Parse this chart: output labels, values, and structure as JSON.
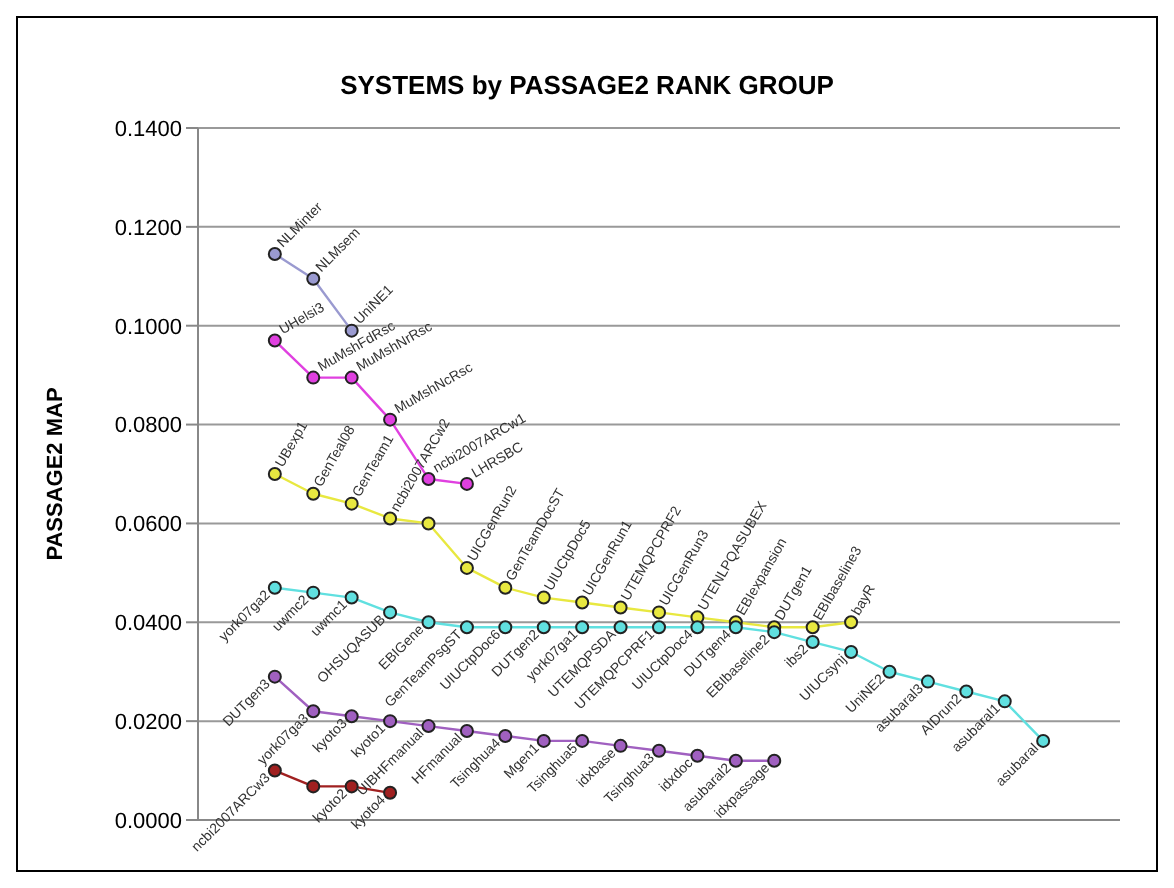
{
  "chart_data": {
    "type": "line",
    "title": "SYSTEMS by PASSAGE2 RANK GROUP",
    "ylabel": "PASSAGE2 MAP",
    "categories": [
      null,
      null,
      null,
      null,
      null,
      null,
      null,
      null,
      null,
      null,
      null,
      null,
      null,
      null,
      null,
      null,
      null,
      null,
      null,
      null,
      null
    ],
    "ylim": [
      0,
      0.14
    ],
    "yticks": [
      {
        "value": 0,
        "label": "0.0000"
      },
      {
        "value": 0.02,
        "label": "0.0200"
      },
      {
        "value": 0.04,
        "label": "0.0400"
      },
      {
        "value": 0.06,
        "label": "0.0600"
      },
      {
        "value": 0.08,
        "label": "0.0800"
      },
      {
        "value": 0.1,
        "label": "0.1000"
      },
      {
        "value": 0.12,
        "label": "0.1200"
      },
      {
        "value": 0.14,
        "label": "0.1400"
      }
    ],
    "grid": "y",
    "marker": "circle",
    "line_style": "solid",
    "series": [
      {
        "color": "#9a9ad0",
        "values": [
          0.1145,
          0.1095,
          0.099,
          null,
          null,
          null,
          null,
          null,
          null,
          null,
          null,
          null,
          null,
          null,
          null,
          null,
          null,
          null,
          null,
          null,
          null
        ],
        "value_labels": [
          "NLMinter",
          "NLMsem",
          "UniNE1",
          null,
          null,
          null,
          null,
          null,
          null,
          null,
          null,
          null,
          null,
          null,
          null,
          null,
          null,
          null,
          null,
          null,
          null
        ]
      },
      {
        "color": "#e040e0",
        "values": [
          0.097,
          0.0895,
          0.0895,
          0.081,
          0.069,
          0.068,
          null,
          null,
          null,
          null,
          null,
          null,
          null,
          null,
          null,
          null,
          null,
          null,
          null,
          null,
          null
        ],
        "value_labels": [
          "UHelsi3",
          "MuMshFdRsc",
          "MuMshNrRsc",
          "MuMshNcRsc",
          "ncbi2007ARCw1",
          "LHRSBC",
          null,
          null,
          null,
          null,
          null,
          null,
          null,
          null,
          null,
          null,
          null,
          null,
          null,
          null,
          null
        ]
      },
      {
        "color": "#e8e840",
        "values": [
          0.07,
          0.066,
          0.064,
          0.061,
          0.06,
          0.051,
          0.047,
          0.045,
          0.044,
          0.043,
          0.042,
          0.041,
          0.04,
          0.039,
          0.039,
          0.04,
          null,
          null,
          null,
          null,
          null
        ],
        "value_labels": [
          "UBexp1",
          "GenTeal08",
          "GenTeam1",
          "ncbi2007ARCw2",
          null,
          "UICGenRun2",
          "GenTeamDocST",
          "UIUCtpDoc5",
          "UICGenRun1",
          "UTEMQPCPRF2",
          "UICGenRun3",
          "UTENLPQASUBEX",
          "EBIexpansion",
          "DUTgen1",
          "EBIbaseline3",
          "bayR",
          null,
          null,
          null,
          null,
          null
        ]
      },
      {
        "color": "#60e0e0",
        "values": [
          0.047,
          0.046,
          0.045,
          0.042,
          0.04,
          0.039,
          0.039,
          0.039,
          0.039,
          0.039,
          0.039,
          0.039,
          0.039,
          0.038,
          0.036,
          0.034,
          0.03,
          0.028,
          0.026,
          0.024,
          0.016
        ],
        "value_labels": [
          "york07ga2",
          "uwmc2",
          "uwmc1",
          "OHSUQASUB",
          "EBIGene",
          "GenTeamPsgST",
          "UIUCtpDoc6",
          "DUTgen2",
          "york07ga1",
          "UTEMQPSDA",
          "UTEMQPCPRF1",
          "UIUCtpDoc4",
          "DUTgen4",
          "EBIbaseline2",
          "ibs2",
          "UIUCsynj",
          "UniNE2",
          "asubaral3",
          "AIDrun2",
          "asubaral1",
          "asubaral"
        ]
      },
      {
        "color": "#a060c0",
        "values": [
          0.029,
          0.022,
          0.021,
          0.02,
          0.019,
          0.018,
          0.017,
          0.016,
          0.016,
          0.015,
          0.014,
          0.013,
          0.012,
          0.012,
          null,
          null,
          null,
          null,
          null,
          null,
          null
        ],
        "value_labels": [
          "DUTgen3",
          "york07ga3",
          "kyoto3",
          "kyoto1",
          "UIBHFmanual",
          "HFmanual",
          "Tsinghua4",
          "Mgen1",
          "Tsinghua5",
          "idxbase",
          "Tsinghua3",
          "idxdoc",
          "asubaral2",
          "idxpassage",
          null,
          null,
          null,
          null,
          null,
          null,
          null
        ]
      },
      {
        "color": "#a02020",
        "values": [
          0.01,
          0.0068,
          0.0068,
          0.0055,
          null,
          null,
          null,
          null,
          null,
          null,
          null,
          null,
          null,
          null,
          null,
          null,
          null,
          null,
          null,
          null,
          null
        ],
        "value_labels": [
          "ncbi2007ARCw3",
          null,
          "kyoto2",
          "kyoto4",
          null,
          null,
          null,
          null,
          null,
          null,
          null,
          null,
          null,
          null,
          null,
          null,
          null,
          null,
          null,
          null,
          null
        ]
      }
    ]
  }
}
